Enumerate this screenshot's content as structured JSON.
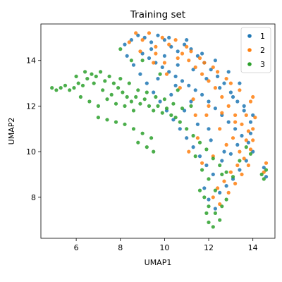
{
  "chart_data": {
    "type": "scatter",
    "title": "Training set",
    "xlabel": "UMAP1",
    "ylabel": "UMAP2",
    "xlim": [
      4.4,
      15.0
    ],
    "ylim": [
      6.2,
      15.6
    ],
    "xticks": [
      6,
      8,
      10,
      12,
      14
    ],
    "yticks": [
      8,
      10,
      12,
      14
    ],
    "grid": false,
    "legend_position": "top-right",
    "series": [
      {
        "name": "1",
        "color": "#1f77b4",
        "points": [
          [
            8.2,
            14.7
          ],
          [
            8.5,
            14.9
          ],
          [
            8.8,
            15.1
          ],
          [
            9.1,
            15.0
          ],
          [
            9.4,
            14.8
          ],
          [
            9.7,
            15.1
          ],
          [
            10.0,
            14.9
          ],
          [
            10.3,
            14.6
          ],
          [
            10.6,
            14.4
          ],
          [
            10.9,
            14.7
          ],
          [
            11.2,
            14.5
          ],
          [
            11.5,
            14.2
          ],
          [
            11.8,
            13.9
          ],
          [
            12.1,
            13.6
          ],
          [
            12.4,
            13.3
          ],
          [
            12.7,
            13.0
          ],
          [
            13.0,
            12.6
          ],
          [
            13.3,
            12.2
          ],
          [
            13.6,
            11.8
          ],
          [
            13.9,
            11.3
          ],
          [
            9.0,
            14.3
          ],
          [
            9.3,
            14.1
          ],
          [
            9.6,
            13.9
          ],
          [
            9.9,
            13.7
          ],
          [
            10.2,
            13.5
          ],
          [
            10.5,
            13.3
          ],
          [
            10.8,
            13.1
          ],
          [
            11.1,
            12.9
          ],
          [
            11.4,
            12.7
          ],
          [
            11.7,
            12.5
          ],
          [
            12.0,
            12.2
          ],
          [
            12.3,
            11.9
          ],
          [
            12.6,
            11.6
          ],
          [
            12.9,
            11.3
          ],
          [
            13.2,
            11.0
          ],
          [
            13.5,
            10.7
          ],
          [
            13.8,
            10.4
          ],
          [
            14.0,
            10.0
          ],
          [
            13.7,
            9.6
          ],
          [
            13.4,
            9.2
          ],
          [
            13.1,
            8.8
          ],
          [
            12.8,
            8.5
          ],
          [
            12.5,
            8.2
          ],
          [
            12.2,
            9.0
          ],
          [
            11.9,
            9.4
          ],
          [
            11.6,
            9.8
          ],
          [
            11.3,
            10.2
          ],
          [
            11.0,
            10.6
          ],
          [
            10.7,
            11.0
          ],
          [
            10.4,
            11.4
          ],
          [
            10.1,
            11.8
          ],
          [
            9.8,
            12.2
          ],
          [
            9.5,
            12.6
          ],
          [
            9.2,
            13.0
          ],
          [
            8.9,
            13.4
          ],
          [
            8.6,
            13.8
          ],
          [
            8.3,
            14.2
          ],
          [
            10.0,
            14.2
          ],
          [
            10.6,
            13.8
          ],
          [
            11.3,
            13.6
          ],
          [
            11.9,
            13.2
          ],
          [
            12.5,
            12.8
          ],
          [
            13.1,
            12.4
          ],
          [
            13.6,
            12.0
          ],
          [
            14.0,
            11.6
          ],
          [
            13.9,
            10.8
          ],
          [
            13.3,
            10.3
          ],
          [
            12.7,
            10.0
          ],
          [
            12.1,
            10.5
          ],
          [
            11.5,
            11.2
          ],
          [
            10.9,
            11.8
          ],
          [
            10.3,
            12.5
          ],
          [
            9.7,
            13.2
          ],
          [
            9.4,
            14.5
          ],
          [
            10.2,
            15.0
          ],
          [
            11.0,
            14.9
          ],
          [
            11.7,
            14.3
          ],
          [
            12.3,
            14.0
          ],
          [
            12.9,
            13.5
          ],
          [
            13.4,
            13.0
          ],
          [
            14.5,
            9.3
          ],
          [
            14.6,
            8.9
          ],
          [
            12.0,
            7.9
          ],
          [
            12.3,
            7.5
          ],
          [
            11.8,
            8.4
          ],
          [
            12.6,
            9.6
          ],
          [
            13.0,
            9.9
          ],
          [
            12.0,
            11.0
          ],
          [
            11.2,
            12.2
          ],
          [
            10.5,
            12.9
          ]
        ]
      },
      {
        "name": "2",
        "color": "#ff7f0e",
        "points": [
          [
            8.4,
            14.8
          ],
          [
            8.7,
            15.2
          ],
          [
            9.0,
            14.9
          ],
          [
            9.3,
            15.2
          ],
          [
            9.6,
            14.6
          ],
          [
            9.9,
            15.0
          ],
          [
            10.2,
            14.7
          ],
          [
            10.5,
            14.9
          ],
          [
            10.8,
            14.3
          ],
          [
            11.1,
            14.0
          ],
          [
            11.4,
            13.7
          ],
          [
            11.7,
            13.4
          ],
          [
            12.0,
            13.1
          ],
          [
            12.3,
            12.8
          ],
          [
            12.6,
            12.4
          ],
          [
            12.9,
            12.0
          ],
          [
            13.2,
            11.6
          ],
          [
            13.5,
            11.2
          ],
          [
            13.8,
            10.9
          ],
          [
            14.0,
            10.5
          ],
          [
            13.9,
            10.1
          ],
          [
            13.6,
            9.7
          ],
          [
            13.3,
            9.4
          ],
          [
            13.0,
            9.1
          ],
          [
            12.7,
            8.7
          ],
          [
            12.4,
            8.4
          ],
          [
            12.9,
            8.2
          ],
          [
            13.2,
            8.6
          ],
          [
            13.5,
            9.0
          ],
          [
            13.8,
            9.4
          ],
          [
            11.0,
            14.6
          ],
          [
            11.6,
            14.1
          ],
          [
            12.2,
            13.7
          ],
          [
            12.8,
            13.2
          ],
          [
            13.4,
            12.7
          ],
          [
            13.9,
            12.2
          ],
          [
            14.1,
            11.5
          ],
          [
            14.0,
            11.0
          ],
          [
            13.7,
            10.5
          ],
          [
            13.1,
            10.6
          ],
          [
            12.5,
            11.0
          ],
          [
            11.9,
            11.6
          ],
          [
            11.3,
            12.3
          ],
          [
            10.7,
            12.8
          ],
          [
            10.1,
            13.4
          ],
          [
            9.5,
            13.9
          ],
          [
            8.9,
            14.4
          ],
          [
            11.5,
            10.6
          ],
          [
            11.1,
            10.0
          ],
          [
            11.7,
            9.5
          ],
          [
            12.2,
            9.8
          ],
          [
            12.8,
            10.3
          ],
          [
            13.4,
            10.0
          ],
          [
            12.0,
            12.0
          ],
          [
            12.6,
            11.7
          ],
          [
            13.2,
            11.3
          ],
          [
            13.7,
            11.6
          ],
          [
            14.0,
            12.4
          ],
          [
            13.0,
            13.0
          ],
          [
            12.4,
            13.5
          ],
          [
            11.8,
            13.9
          ],
          [
            11.2,
            14.4
          ],
          [
            10.6,
            14.1
          ],
          [
            10.0,
            13.9
          ],
          [
            9.6,
            14.3
          ],
          [
            14.5,
            9.1
          ],
          [
            14.6,
            9.5
          ],
          [
            12.2,
            8.0
          ],
          [
            12.5,
            7.7
          ],
          [
            11.4,
            11.6
          ]
        ]
      },
      {
        "name": "3",
        "color": "#2ca02c",
        "points": [
          [
            4.9,
            12.8
          ],
          [
            5.1,
            12.7
          ],
          [
            5.3,
            12.8
          ],
          [
            5.5,
            12.9
          ],
          [
            5.7,
            12.7
          ],
          [
            5.9,
            12.8
          ],
          [
            6.1,
            13.0
          ],
          [
            6.3,
            12.9
          ],
          [
            6.5,
            13.2
          ],
          [
            6.7,
            13.4
          ],
          [
            6.9,
            13.3
          ],
          [
            7.1,
            13.5
          ],
          [
            7.3,
            13.1
          ],
          [
            7.5,
            13.3
          ],
          [
            7.7,
            13.0
          ],
          [
            7.9,
            12.8
          ],
          [
            8.1,
            12.6
          ],
          [
            8.3,
            12.4
          ],
          [
            8.5,
            12.2
          ],
          [
            8.7,
            12.4
          ],
          [
            8.9,
            12.1
          ],
          [
            9.1,
            12.3
          ],
          [
            9.3,
            12.0
          ],
          [
            9.5,
            11.8
          ],
          [
            9.7,
            12.0
          ],
          [
            9.9,
            11.7
          ],
          [
            10.1,
            11.9
          ],
          [
            10.3,
            11.6
          ],
          [
            10.5,
            11.5
          ],
          [
            10.7,
            11.3
          ],
          [
            6.2,
            12.4
          ],
          [
            6.6,
            12.2
          ],
          [
            7.0,
            12.0
          ],
          [
            7.4,
            12.3
          ],
          [
            7.8,
            12.1
          ],
          [
            8.2,
            12.0
          ],
          [
            8.6,
            11.8
          ],
          [
            6.0,
            13.3
          ],
          [
            6.4,
            13.5
          ],
          [
            6.8,
            13.0
          ],
          [
            7.2,
            12.7
          ],
          [
            7.6,
            12.5
          ],
          [
            8.0,
            13.2
          ],
          [
            8.4,
            13.0
          ],
          [
            8.8,
            12.7
          ],
          [
            9.2,
            12.6
          ],
          [
            9.6,
            12.4
          ],
          [
            10.0,
            12.3
          ],
          [
            10.4,
            12.1
          ],
          [
            10.8,
            11.9
          ],
          [
            7.0,
            11.5
          ],
          [
            7.4,
            11.4
          ],
          [
            7.8,
            11.3
          ],
          [
            8.2,
            11.2
          ],
          [
            8.6,
            11.0
          ],
          [
            9.0,
            10.8
          ],
          [
            9.4,
            10.6
          ],
          [
            8.8,
            10.4
          ],
          [
            9.2,
            10.2
          ],
          [
            9.5,
            10.0
          ],
          [
            11.0,
            11.0
          ],
          [
            11.3,
            10.7
          ],
          [
            11.6,
            10.4
          ],
          [
            11.9,
            10.1
          ],
          [
            12.2,
            9.7
          ],
          [
            12.5,
            9.4
          ],
          [
            12.8,
            9.1
          ],
          [
            13.1,
            8.9
          ],
          [
            13.4,
            9.6
          ],
          [
            13.7,
            10.2
          ],
          [
            13.9,
            9.9
          ],
          [
            11.4,
            9.8
          ],
          [
            11.7,
            9.2
          ],
          [
            12.0,
            8.8
          ],
          [
            12.3,
            8.3
          ],
          [
            11.6,
            8.3
          ],
          [
            11.8,
            8.0
          ],
          [
            12.0,
            7.6
          ],
          [
            12.3,
            7.3
          ],
          [
            12.5,
            7.0
          ],
          [
            12.2,
            6.7
          ],
          [
            12.0,
            6.9
          ],
          [
            11.9,
            7.3
          ],
          [
            12.6,
            7.6
          ],
          [
            12.8,
            7.9
          ],
          [
            9.0,
            14.0
          ],
          [
            9.8,
            13.4
          ],
          [
            10.6,
            12.7
          ],
          [
            11.2,
            12.0
          ],
          [
            12.6,
            9.0
          ],
          [
            14.5,
            8.8
          ],
          [
            14.6,
            9.2
          ],
          [
            14.4,
            9.0
          ],
          [
            8.0,
            14.5
          ],
          [
            8.5,
            14.0
          ]
        ]
      }
    ]
  }
}
